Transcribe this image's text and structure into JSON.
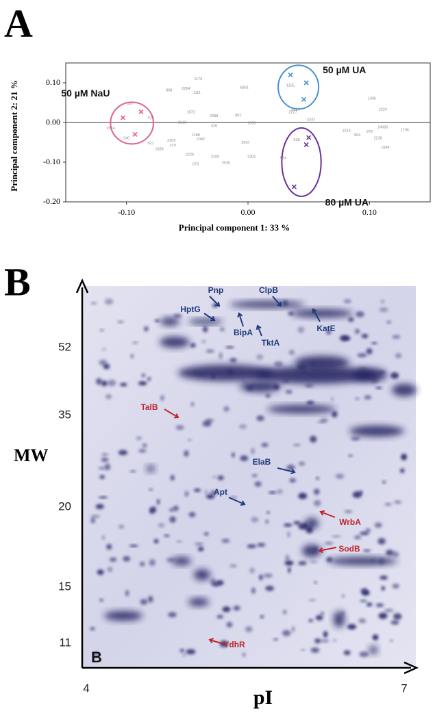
{
  "panel_labels": [
    "A",
    "B"
  ],
  "chart_data": {
    "type": "scatter",
    "xlabel": "Principal component 1: 33 %",
    "ylabel": "Principal component 2: 21 %",
    "xlim": [
      -0.15,
      0.15
    ],
    "ylim": [
      -0.2,
      0.15
    ],
    "xticks": [
      {
        "value": -0.1,
        "label": "-0.10"
      },
      {
        "value": 0,
        "label": "0.00"
      },
      {
        "value": 0.1,
        "label": "0.10"
      }
    ],
    "yticks": [
      {
        "value": 0.1,
        "label": "0.10"
      },
      {
        "value": 0,
        "label": "0.00"
      },
      {
        "value": -0.1,
        "label": "-0.10"
      },
      {
        "value": -0.2,
        "label": "-0.20"
      }
    ],
    "zero_line": true,
    "series": [
      {
        "name": "50 µM NaU",
        "color": "#e0608a",
        "x": [
          -0.103,
          -0.088,
          -0.093
        ],
        "y": [
          0.012,
          0.027,
          -0.03
        ]
      },
      {
        "name": "50 µM UA",
        "color": "#4a8fd0",
        "x": [
          0.035,
          0.048,
          0.046
        ],
        "y": [
          0.12,
          0.1,
          0.058
        ]
      },
      {
        "name": "80 µM UA",
        "color": "#6a2f9a",
        "x": [
          0.05,
          0.048,
          0.038
        ],
        "y": [
          -0.038,
          -0.056,
          -0.162
        ]
      }
    ],
    "annotations": [
      {
        "text": "1179",
        "x": -0.041,
        "y": 0.109
      },
      {
        "text": "898",
        "x": -0.065,
        "y": 0.081
      },
      {
        "text": "2264",
        "x": -0.051,
        "y": 0.085
      },
      {
        "text": "1111",
        "x": -0.042,
        "y": 0.075
      },
      {
        "text": "6891",
        "x": -0.003,
        "y": 0.088
      },
      {
        "text": "1072",
        "x": -0.047,
        "y": 0.026
      },
      {
        "text": "2288",
        "x": -0.028,
        "y": 0.016
      },
      {
        "text": "891",
        "x": -0.008,
        "y": 0.018
      },
      {
        "text": "2227",
        "x": 0.037,
        "y": 0.026
      },
      {
        "text": "2219",
        "x": -0.054,
        "y": 0
      },
      {
        "text": "428",
        "x": -0.028,
        "y": -0.009
      },
      {
        "text": "1288",
        "x": -0.043,
        "y": -0.032
      },
      {
        "text": "2082",
        "x": -0.039,
        "y": -0.042
      },
      {
        "text": "2205",
        "x": -0.063,
        "y": -0.046
      },
      {
        "text": "379",
        "x": -0.062,
        "y": -0.058
      },
      {
        "text": "1838",
        "x": -0.073,
        "y": -0.067
      },
      {
        "text": "2067",
        "x": -0.002,
        "y": -0.051
      },
      {
        "text": "2229",
        "x": -0.048,
        "y": -0.081
      },
      {
        "text": "673",
        "x": -0.043,
        "y": -0.105
      },
      {
        "text": "2100",
        "x": -0.027,
        "y": -0.086
      },
      {
        "text": "2030",
        "x": -0.018,
        "y": -0.102
      },
      {
        "text": "2300",
        "x": 0.003,
        "y": -0.086
      },
      {
        "text": "514",
        "x": 0.029,
        "y": -0.09
      },
      {
        "text": "538",
        "x": 0.04,
        "y": -0.044
      },
      {
        "text": "1013",
        "x": 0.081,
        "y": -0.021
      },
      {
        "text": "904",
        "x": 0.09,
        "y": -0.032
      },
      {
        "text": "978",
        "x": 0.1,
        "y": -0.023
      },
      {
        "text": "24983",
        "x": 0.111,
        "y": -0.012
      },
      {
        "text": "2228",
        "x": 0.107,
        "y": -0.04
      },
      {
        "text": "1684",
        "x": 0.113,
        "y": -0.063
      },
      {
        "text": "1706",
        "x": 0.129,
        "y": -0.019
      },
      {
        "text": "2224",
        "x": 0.111,
        "y": 0.033
      },
      {
        "text": "1305",
        "x": 0.102,
        "y": 0.06
      },
      {
        "text": "2319",
        "x": 0.039,
        "y": 0.033
      },
      {
        "text": "1125",
        "x": 0.035,
        "y": 0.093
      },
      {
        "text": "2347",
        "x": 0.052,
        "y": 0.007
      },
      {
        "text": "1300",
        "x": 0.003,
        "y": -0.002
      },
      {
        "text": "167",
        "x": -0.097,
        "y": 0.047
      },
      {
        "text": "414",
        "x": -0.08,
        "y": 0.012
      },
      {
        "text": "240",
        "x": -0.1,
        "y": -0.04
      },
      {
        "text": "2514",
        "x": -0.113,
        "y": -0.015
      },
      {
        "text": "921",
        "x": -0.08,
        "y": -0.053
      }
    ]
  },
  "gel": {
    "panel_tag": "B",
    "y_label": "MW",
    "x_label": "pI",
    "mw_ticks": [
      "52",
      "35",
      "20",
      "15",
      "11"
    ],
    "pi_ticks": [
      "4",
      "7"
    ],
    "proteins": [
      {
        "name": "Pnp",
        "color": "#1f3a7a"
      },
      {
        "name": "HptG",
        "color": "#1f3a7a"
      },
      {
        "name": "ClpB",
        "color": "#1f3a7a"
      },
      {
        "name": "BipA",
        "color": "#1f3a7a"
      },
      {
        "name": "TktA",
        "color": "#1f3a7a"
      },
      {
        "name": "KatE",
        "color": "#1f3a7a"
      },
      {
        "name": "TalB",
        "color": "#c0262b"
      },
      {
        "name": "ElaB",
        "color": "#1f3a7a"
      },
      {
        "name": "Apt",
        "color": "#1f3a7a"
      },
      {
        "name": "WrbA",
        "color": "#c0262b"
      },
      {
        "name": "SodB",
        "color": "#c0262b"
      },
      {
        "name": "YdhR",
        "color": "#c0262b"
      }
    ]
  }
}
